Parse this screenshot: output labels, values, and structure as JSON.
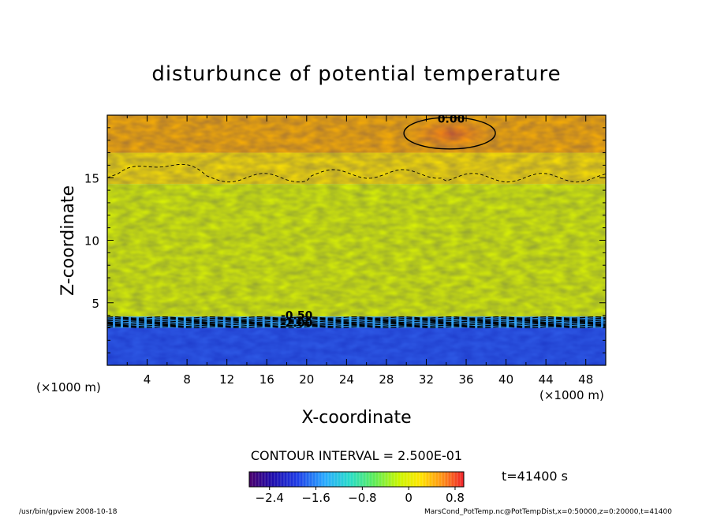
{
  "chart_data": {
    "type": "heatmap",
    "title": "disturbunce of potential temperature",
    "xlabel": "X-coordinate",
    "ylabel": "Z-coordinate",
    "x_unit_left": "(×1000 m)",
    "x_unit_right": "(×1000 m)",
    "xlim": [
      0,
      50
    ],
    "ylim": [
      0,
      20
    ],
    "x_ticks": [
      4,
      8,
      12,
      16,
      20,
      24,
      28,
      32,
      36,
      40,
      44,
      48
    ],
    "y_ticks": [
      5,
      10,
      15
    ],
    "contour_interval_text": "CONTOUR INTERVAL = 2.500E-01",
    "time_label": "t=41400 s",
    "contour_labels": [
      {
        "text": "0.00",
        "x": 34.5,
        "y": 19.4
      },
      {
        "text": "-0.50",
        "x": 19.0,
        "y": 3.7
      },
      {
        "text": "-2.00",
        "x": 19.0,
        "y": 3.1
      }
    ],
    "regions": [
      {
        "z_from": 0,
        "z_to": 3.0,
        "value": -2.4,
        "color": "#2f5ce8"
      },
      {
        "z_from": 3.0,
        "z_to": 3.9,
        "value": -1.6,
        "color": "#3bb8ff"
      },
      {
        "z_from": 3.9,
        "z_to": 14.5,
        "value": 0.1,
        "color": "#dff700"
      },
      {
        "z_from": 14.5,
        "z_to": 17.0,
        "value": 0.4,
        "color": "#ffe400"
      },
      {
        "z_from": 17.0,
        "z_to": 20.0,
        "value": 0.6,
        "color": "#ffb300"
      }
    ],
    "max_region": {
      "x_center": 34.5,
      "z_center": 18.5,
      "value": 0.7,
      "color": "#ff7b10"
    },
    "colorbar": {
      "min": -2.75,
      "max": 0.95,
      "tick_labels": [
        "−2.4",
        "−1.6",
        "−0.8",
        "0",
        "0.8"
      ],
      "tick_values": [
        -2.4,
        -1.6,
        -0.8,
        0,
        0.8
      ]
    }
  },
  "footer": {
    "left": "/usr/bin/gpview   2008-10-18",
    "right": "MarsCond_PotTemp.nc@PotTempDist,x=0:50000,z=0:20000,t=41400"
  }
}
